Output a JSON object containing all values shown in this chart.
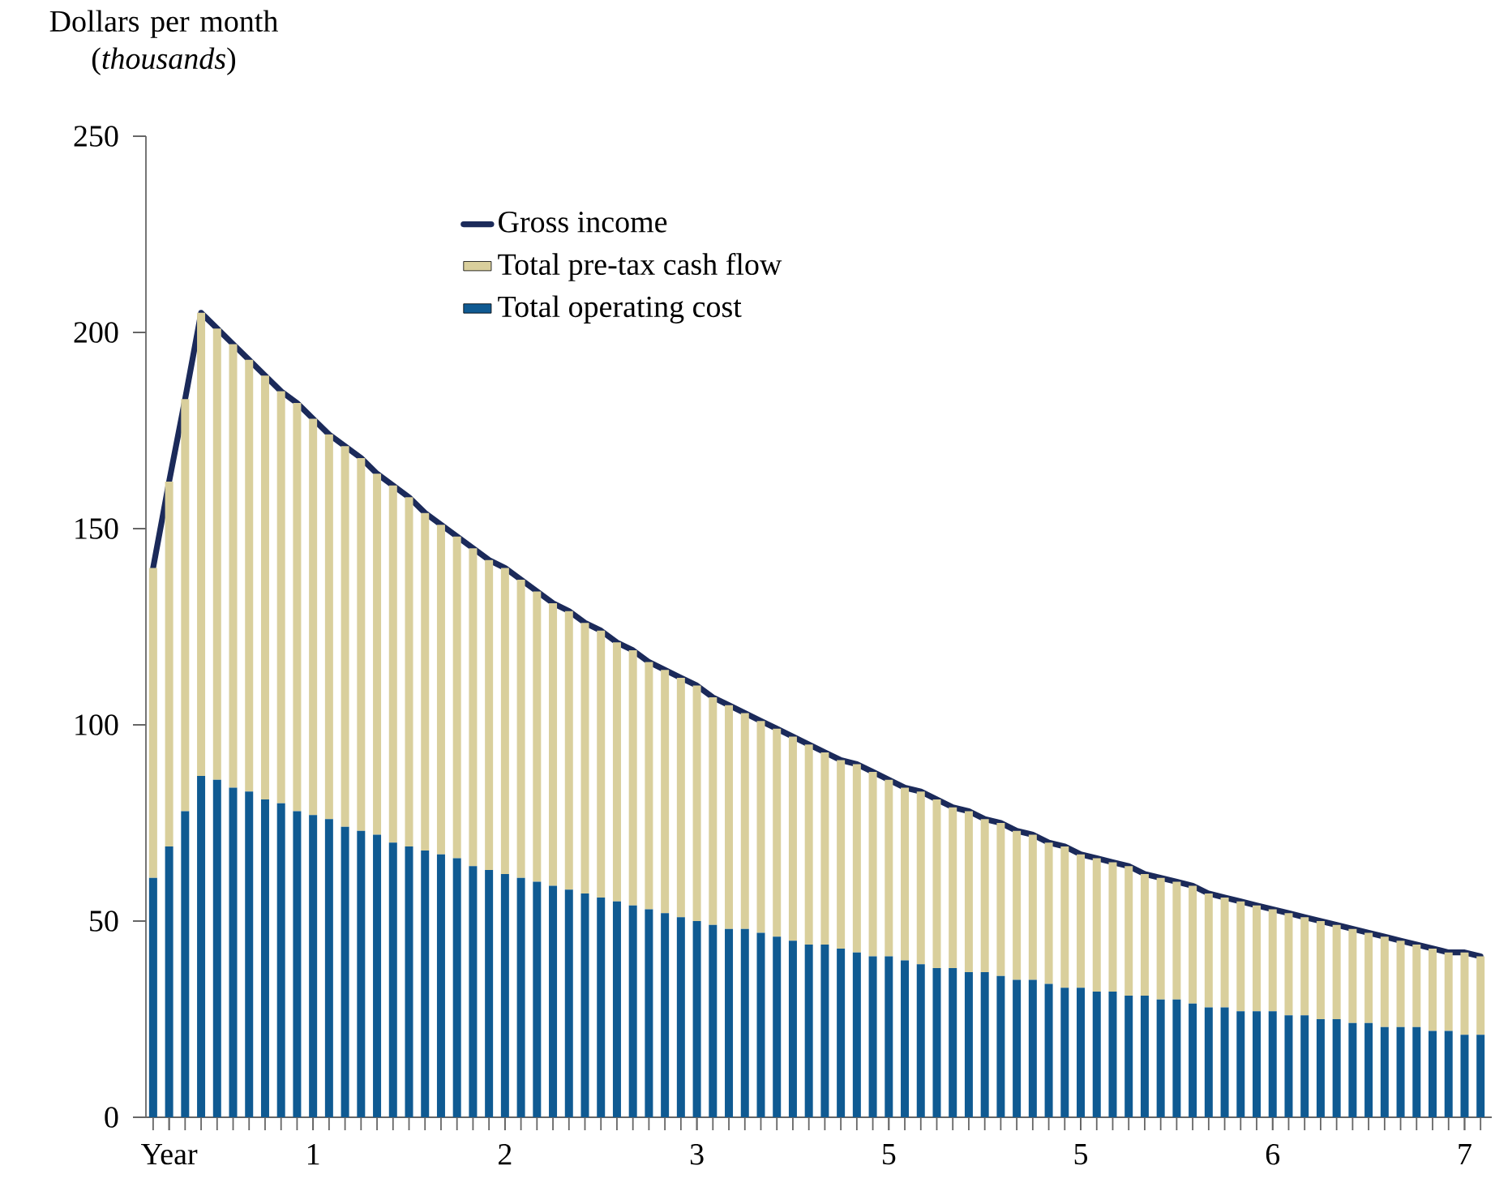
{
  "chart_data": {
    "type": "bar",
    "stacked": true,
    "ylabel": "Dollars per month (*thousands*)",
    "categories": [
      null,
      "Year",
      null,
      null,
      null,
      null,
      null,
      null,
      null,
      null,
      "1",
      null,
      null,
      null,
      null,
      null,
      null,
      null,
      null,
      null,
      null,
      null,
      "2",
      null,
      null,
      null,
      null,
      null,
      null,
      null,
      null,
      null,
      null,
      null,
      "3",
      null,
      null,
      null,
      null,
      null,
      null,
      null,
      null,
      null,
      null,
      null,
      "5",
      null,
      null,
      null,
      null,
      null,
      null,
      null,
      null,
      null,
      null,
      null,
      "5",
      null,
      null,
      null,
      null,
      null,
      null,
      null,
      null,
      null,
      null,
      null,
      "6",
      null,
      null,
      null,
      null,
      null,
      null,
      null,
      null,
      null,
      null,
      null,
      "7",
      null
    ],
    "series": [
      {
        "name": "Total operating cost",
        "color": "#0f5a92",
        "values": [
          61,
          69,
          78,
          87,
          86,
          84,
          83,
          81,
          80,
          78,
          77,
          76,
          74,
          73,
          72,
          70,
          69,
          68,
          67,
          66,
          64,
          63,
          62,
          61,
          60,
          59,
          58,
          57,
          56,
          55,
          54,
          53,
          52,
          51,
          50,
          49,
          48,
          48,
          47,
          46,
          45,
          44,
          44,
          43,
          42,
          41,
          41,
          40,
          39,
          38,
          38,
          37,
          37,
          36,
          35,
          35,
          34,
          33,
          33,
          32,
          32,
          31,
          31,
          30,
          30,
          29,
          28,
          28,
          27,
          27,
          27,
          26,
          26,
          25,
          25,
          24,
          24,
          23,
          23,
          23,
          22,
          22,
          21,
          21
        ]
      },
      {
        "name": "Total pre-tax cash flow",
        "color": "#d9cf9c",
        "values": [
          79,
          93,
          105,
          118,
          115,
          113,
          110,
          108,
          105,
          104,
          101,
          98,
          97,
          95,
          92,
          91,
          89,
          86,
          84,
          82,
          81,
          79,
          78,
          76,
          74,
          72,
          71,
          69,
          68,
          66,
          65,
          63,
          62,
          61,
          60,
          58,
          57,
          55,
          54,
          53,
          52,
          51,
          49,
          48,
          48,
          47,
          45,
          44,
          44,
          43,
          41,
          41,
          39,
          39,
          38,
          37,
          36,
          36,
          34,
          34,
          33,
          33,
          31,
          31,
          30,
          30,
          29,
          28,
          28,
          27,
          26,
          26,
          25,
          25,
          24,
          24,
          23,
          23,
          22,
          21,
          21,
          20,
          21,
          20
        ]
      },
      {
        "name": "Gross income",
        "type": "line",
        "color": "#1b2a5a",
        "values": [
          140,
          162,
          183,
          205,
          201,
          197,
          193,
          189,
          185,
          182,
          178,
          174,
          171,
          168,
          164,
          161,
          158,
          154,
          151,
          148,
          145,
          142,
          140,
          137,
          134,
          131,
          129,
          126,
          124,
          121,
          119,
          116,
          114,
          112,
          110,
          107,
          105,
          103,
          101,
          99,
          97,
          95,
          93,
          91,
          90,
          88,
          86,
          84,
          83,
          81,
          79,
          78,
          76,
          75,
          73,
          72,
          70,
          69,
          67,
          66,
          65,
          64,
          62,
          61,
          60,
          59,
          57,
          56,
          55,
          54,
          53,
          52,
          51,
          50,
          49,
          48,
          47,
          46,
          45,
          44,
          43,
          42,
          42,
          41
        ]
      }
    ],
    "ylim": [
      0,
      250
    ],
    "yticks": [
      0,
      50,
      100,
      150,
      200,
      250
    ],
    "legend": "top"
  }
}
